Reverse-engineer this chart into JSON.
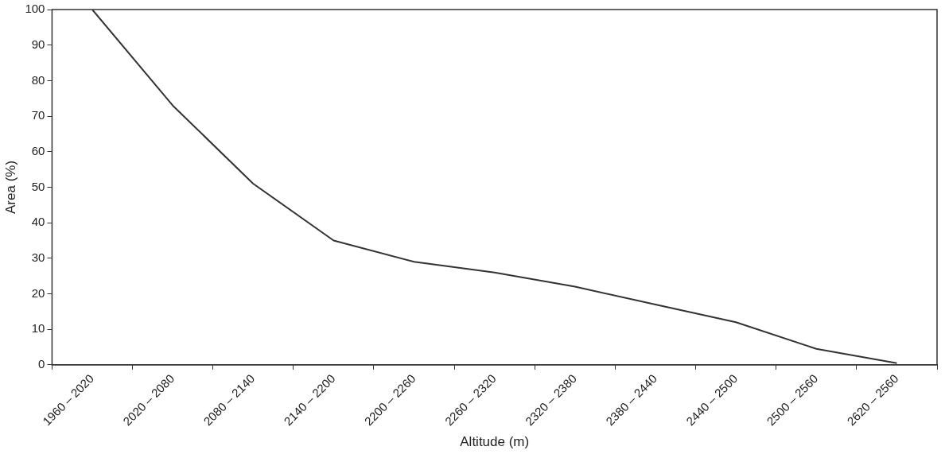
{
  "chart_data": {
    "type": "line",
    "xlabel": "Altitude (m)",
    "ylabel": "Area (%)",
    "categories": [
      "1960 – 2020",
      "2020 – 2080",
      "2080 – 2140",
      "2140 – 2200",
      "2200 – 2260",
      "2260 – 2320",
      "2320 – 2380",
      "2380 – 2440",
      "2440 – 2500",
      "2500 – 2560",
      "2620 – 2560"
    ],
    "series": [
      {
        "color": "#333333",
        "values": [
          100,
          73,
          51,
          35,
          29,
          26,
          22,
          17,
          12,
          4.5,
          0.5
        ]
      }
    ],
    "ylim": [
      0,
      100
    ],
    "yticks": [
      0,
      10,
      20,
      30,
      40,
      50,
      60,
      70,
      80,
      90,
      100
    ],
    "grid": false,
    "legend": false,
    "marker": "none",
    "line_style": "solid"
  }
}
